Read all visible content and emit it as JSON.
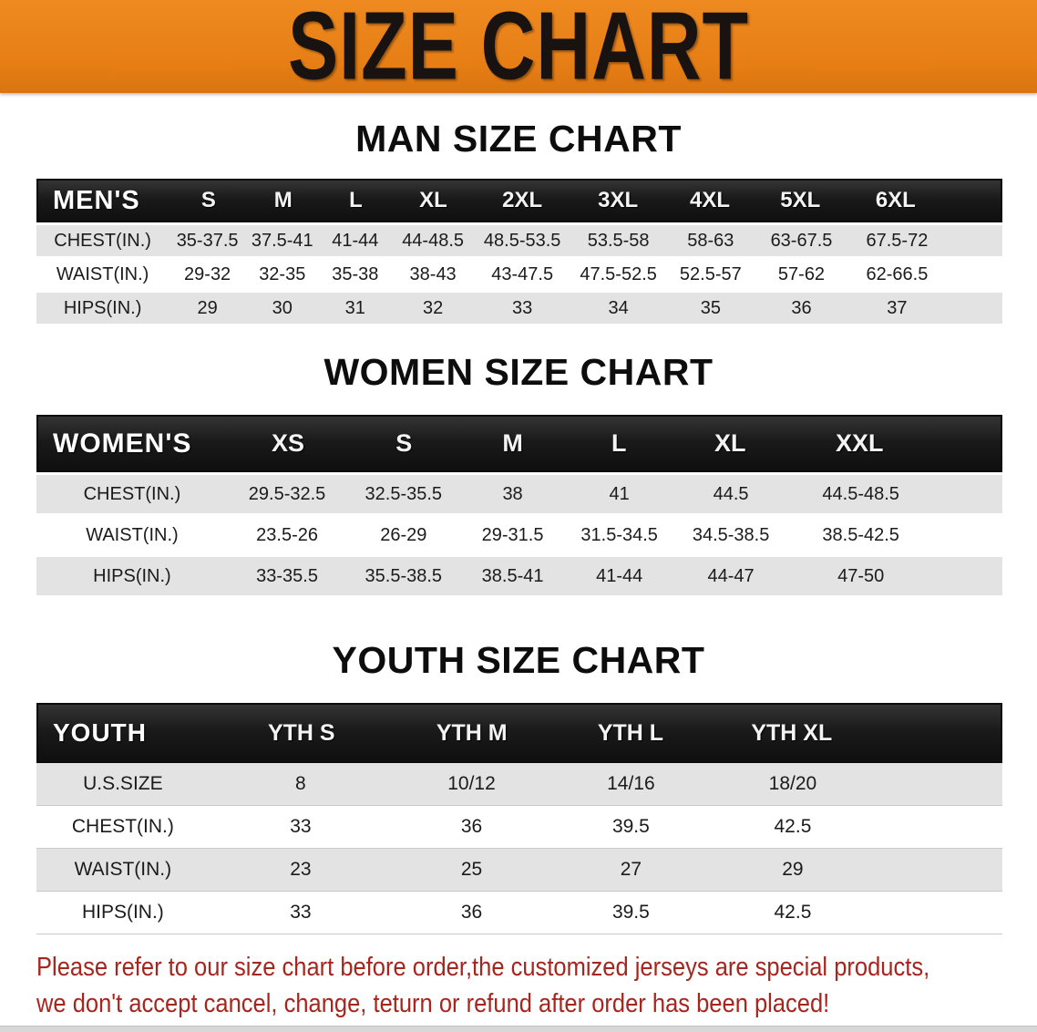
{
  "banner": {
    "title": "SIZE CHART",
    "bg_color": "#e67e15"
  },
  "colors": {
    "header_black": "#181818",
    "stripe_gray": "#e3e3e3",
    "note_red": "#a6261d"
  },
  "sections": {
    "men": {
      "heading": "MAN SIZE CHART",
      "table": {
        "label": "MEN'S",
        "columns": [
          "S",
          "M",
          "L",
          "XL",
          "2XL",
          "3XL",
          "4XL",
          "5XL",
          "6XL"
        ],
        "rows": [
          {
            "label": "CHEST(IN.)",
            "values": [
              "35-37.5",
              "37.5-41",
              "41-44",
              "44-48.5",
              "48.5-53.5",
              "53.5-58",
              "58-63",
              "63-67.5",
              "67.5-72"
            ]
          },
          {
            "label": "WAIST(IN.)",
            "values": [
              "29-32",
              "32-35",
              "35-38",
              "38-43",
              "43-47.5",
              "47.5-52.5",
              "52.5-57",
              "57-62",
              "62-66.5"
            ]
          },
          {
            "label": "HIPS(IN.)",
            "values": [
              "29",
              "30",
              "31",
              "32",
              "33",
              "34",
              "35",
              "36",
              "37"
            ]
          }
        ]
      }
    },
    "women": {
      "heading": "WOMEN SIZE CHART",
      "table": {
        "label": "WOMEN'S",
        "columns": [
          "XS",
          "S",
          "M",
          "L",
          "XL",
          "XXL"
        ],
        "rows": [
          {
            "label": "CHEST(IN.)",
            "values": [
              "29.5-32.5",
              "32.5-35.5",
              "38",
              "41",
              "44.5",
              "44.5-48.5"
            ]
          },
          {
            "label": "WAIST(IN.)",
            "values": [
              "23.5-26",
              "26-29",
              "29-31.5",
              "31.5-34.5",
              "34.5-38.5",
              "38.5-42.5"
            ]
          },
          {
            "label": "HIPS(IN.)",
            "values": [
              "33-35.5",
              "35.5-38.5",
              "38.5-41",
              "41-44",
              "44-47",
              "47-50"
            ]
          }
        ]
      }
    },
    "youth": {
      "heading": "YOUTH SIZE CHART",
      "table": {
        "label": "YOUTH",
        "columns": [
          "YTH S",
          "YTH M",
          "YTH L",
          "YTH XL"
        ],
        "rows": [
          {
            "label": "U.S.SIZE",
            "values": [
              "8",
              "10/12",
              "14/16",
              "18/20"
            ]
          },
          {
            "label": "CHEST(IN.)",
            "values": [
              "33",
              "36",
              "39.5",
              "42.5"
            ]
          },
          {
            "label": "WAIST(IN.)",
            "values": [
              "23",
              "25",
              "27",
              "29"
            ]
          },
          {
            "label": "HIPS(IN.)",
            "values": [
              "33",
              "36",
              "39.5",
              "42.5"
            ]
          }
        ]
      }
    }
  },
  "note": {
    "line1": "Please refer to our size chart before order,the customized jerseys are special products,",
    "line2": "we don't accept cancel, change, teturn or refund after order has been placed!"
  }
}
